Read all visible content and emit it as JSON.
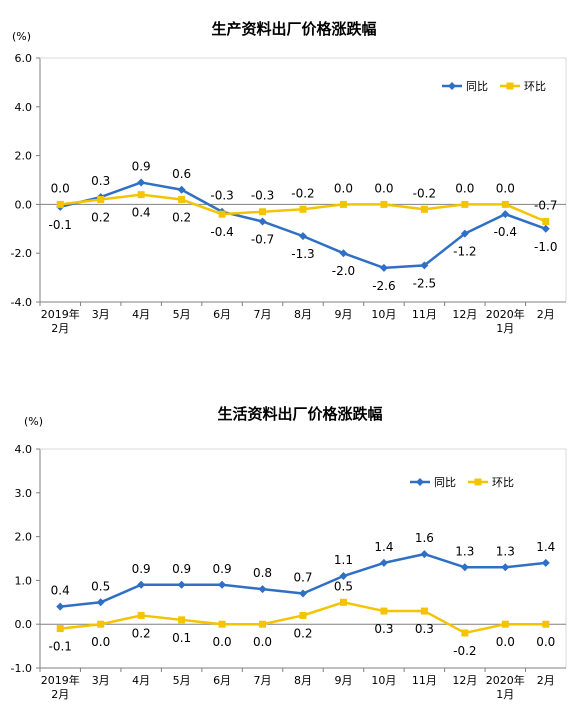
{
  "colors": {
    "yoy": "#2F6FC4",
    "mom": "#F5C400",
    "axis": "#808080",
    "grid": "#D9D9D9"
  },
  "chart_data": [
    {
      "type": "line",
      "title": "生产资料出厂价格涨跌幅",
      "unit_label": "(%)",
      "categories": [
        "2019年|2月",
        "3月",
        "4月",
        "5月",
        "6月",
        "7月",
        "8月",
        "9月",
        "10月",
        "11月",
        "12月",
        "2020年|1月",
        "2月"
      ],
      "y_ticks": [
        "6.0",
        "4.0",
        "2.0",
        "0.0",
        "-2.0",
        "-4.0"
      ],
      "ylim": [
        -4,
        6
      ],
      "legend_position": "top-right",
      "series": [
        {
          "name": "同比",
          "values": [
            -0.1,
            0.3,
            0.9,
            0.6,
            -0.3,
            -0.7,
            -1.3,
            -2.0,
            -2.6,
            -2.5,
            -1.2,
            -0.4,
            -1.0
          ],
          "labels": [
            "-0.1",
            "0.3",
            "0.9",
            "0.6",
            "-0.3",
            "-0.7",
            "-1.3",
            "-2.0",
            "-2.6",
            "-2.5",
            "-1.2",
            "-0.4",
            "-1.0"
          ]
        },
        {
          "name": "环比",
          "values": [
            0.0,
            0.2,
            0.4,
            0.2,
            -0.4,
            -0.3,
            -0.2,
            0.0,
            0.0,
            -0.2,
            0.0,
            0.0,
            -0.7
          ],
          "labels": [
            "0.0",
            "0.2",
            "0.4",
            "0.2",
            "-0.4",
            "-0.3",
            "-0.2",
            "0.0",
            "0.0",
            "-0.2",
            "0.0",
            "0.0",
            "-0.7"
          ]
        }
      ]
    },
    {
      "type": "line",
      "title": "生活资料出厂价格涨跌幅",
      "unit_label": "(%)",
      "categories": [
        "2019年|2月",
        "3月",
        "4月",
        "5月",
        "6月",
        "7月",
        "8月",
        "9月",
        "10月",
        "11月",
        "12月",
        "2020年|1月",
        "2月"
      ],
      "y_ticks": [
        "4.0",
        "3.0",
        "2.0",
        "1.0",
        "0.0",
        "-1.0"
      ],
      "ylim": [
        -1,
        4
      ],
      "legend_position": "top-right",
      "series": [
        {
          "name": "同比",
          "values": [
            0.4,
            0.5,
            0.9,
            0.9,
            0.9,
            0.8,
            0.7,
            1.1,
            1.4,
            1.6,
            1.3,
            1.3,
            1.4
          ],
          "labels": [
            "0.4",
            "0.5",
            "0.9",
            "0.9",
            "0.9",
            "0.8",
            "0.7",
            "1.1",
            "1.4",
            "1.6",
            "1.3",
            "1.3",
            "1.4"
          ]
        },
        {
          "name": "环比",
          "values": [
            -0.1,
            0.0,
            0.2,
            0.1,
            0.0,
            0.0,
            0.2,
            0.5,
            0.3,
            0.3,
            -0.2,
            0.0,
            0.0
          ],
          "labels": [
            "-0.1",
            "0.0",
            "0.2",
            "0.1",
            "0.0",
            "0.0",
            "0.2",
            "0.5",
            "0.3",
            "0.3",
            "-0.2",
            "0.0",
            "0.0"
          ]
        }
      ]
    }
  ]
}
